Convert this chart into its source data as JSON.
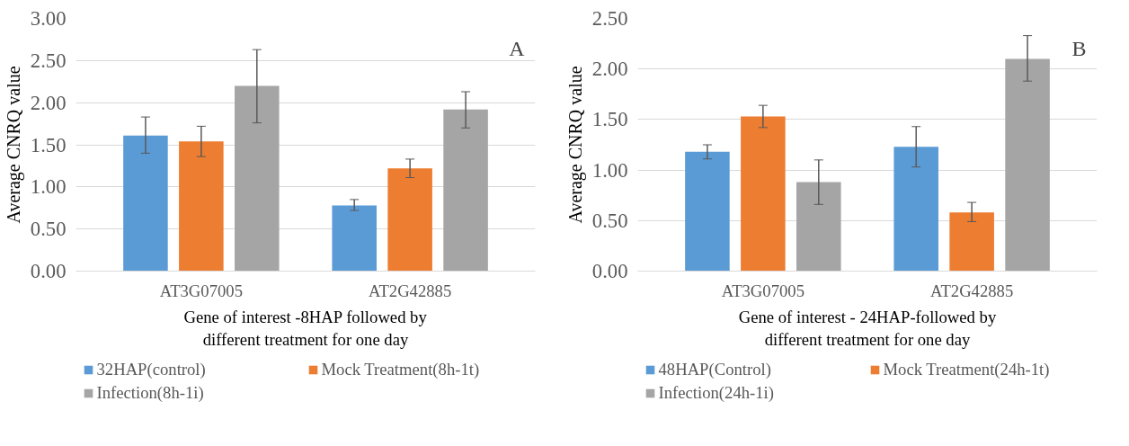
{
  "chart_data": [
    {
      "type": "bar",
      "categories": [
        "AT3G07005",
        "AT2G42885"
      ],
      "xlabel": "Gene of interest -8HAP followed by different treatment for one day",
      "ylabel": "Average CNRQ value",
      "ylim": [
        0,
        3
      ],
      "yticks": [
        {
          "value": 0,
          "label": "0.00"
        },
        {
          "value": 0.5,
          "label": "0.50"
        },
        {
          "value": 1,
          "label": "1.00"
        },
        {
          "value": 1.5,
          "label": "1.50"
        },
        {
          "value": 2,
          "label": "2.00"
        },
        {
          "value": 2.5,
          "label": "2.50"
        },
        {
          "value": 3,
          "label": "3.00"
        }
      ],
      "grid": "y",
      "legend": "bottom",
      "annotations": [
        "A"
      ],
      "series": [
        {
          "name": "32HAP(control)",
          "color": "#5b9bd5",
          "values": [
            1.61,
            0.78
          ],
          "errors": [
            [
              1.4,
              1.83
            ],
            [
              0.72,
              0.85
            ]
          ]
        },
        {
          "name": "Mock Treatment(8h-1t)",
          "color": "#ed7d31",
          "values": [
            1.54,
            1.22
          ],
          "errors": [
            [
              1.36,
              1.72
            ],
            [
              1.11,
              1.33
            ]
          ]
        },
        {
          "name": "Infection(8h-1i)",
          "color": "#a5a5a5",
          "values": [
            2.2,
            1.92
          ],
          "errors": [
            [
              1.76,
              2.63
            ],
            [
              1.7,
              2.13
            ]
          ]
        }
      ]
    },
    {
      "type": "bar",
      "categories": [
        "AT3G07005",
        "AT2G42885"
      ],
      "xlabel": "Gene of interest - 24HAP-followed by different treatment for one day",
      "ylabel": "Average CNRQ value",
      "ylim": [
        0,
        2.5
      ],
      "yticks": [
        {
          "value": 0,
          "label": "0.00"
        },
        {
          "value": 0.5,
          "label": "0.50"
        },
        {
          "value": 1,
          "label": "1.00"
        },
        {
          "value": 1.5,
          "label": "1.50"
        },
        {
          "value": 2,
          "label": "2.00"
        },
        {
          "value": 2.5,
          "label": "2.50"
        }
      ],
      "grid": "y",
      "legend": "bottom",
      "annotations": [
        "B"
      ],
      "series": [
        {
          "name": "48HAP(Control)",
          "color": "#5b9bd5",
          "values": [
            1.18,
            1.23
          ],
          "errors": [
            [
              1.11,
              1.25
            ],
            [
              1.03,
              1.43
            ]
          ]
        },
        {
          "name": "Mock Treatment(24h-1t)",
          "color": "#ed7d31",
          "values": [
            1.53,
            0.58
          ],
          "errors": [
            [
              1.42,
              1.64
            ],
            [
              0.49,
              0.68
            ]
          ]
        },
        {
          "name": "Infection(24h-1i)",
          "color": "#a5a5a5",
          "values": [
            0.88,
            2.1
          ],
          "errors": [
            [
              0.66,
              1.1
            ],
            [
              1.88,
              2.33
            ]
          ]
        }
      ]
    }
  ]
}
